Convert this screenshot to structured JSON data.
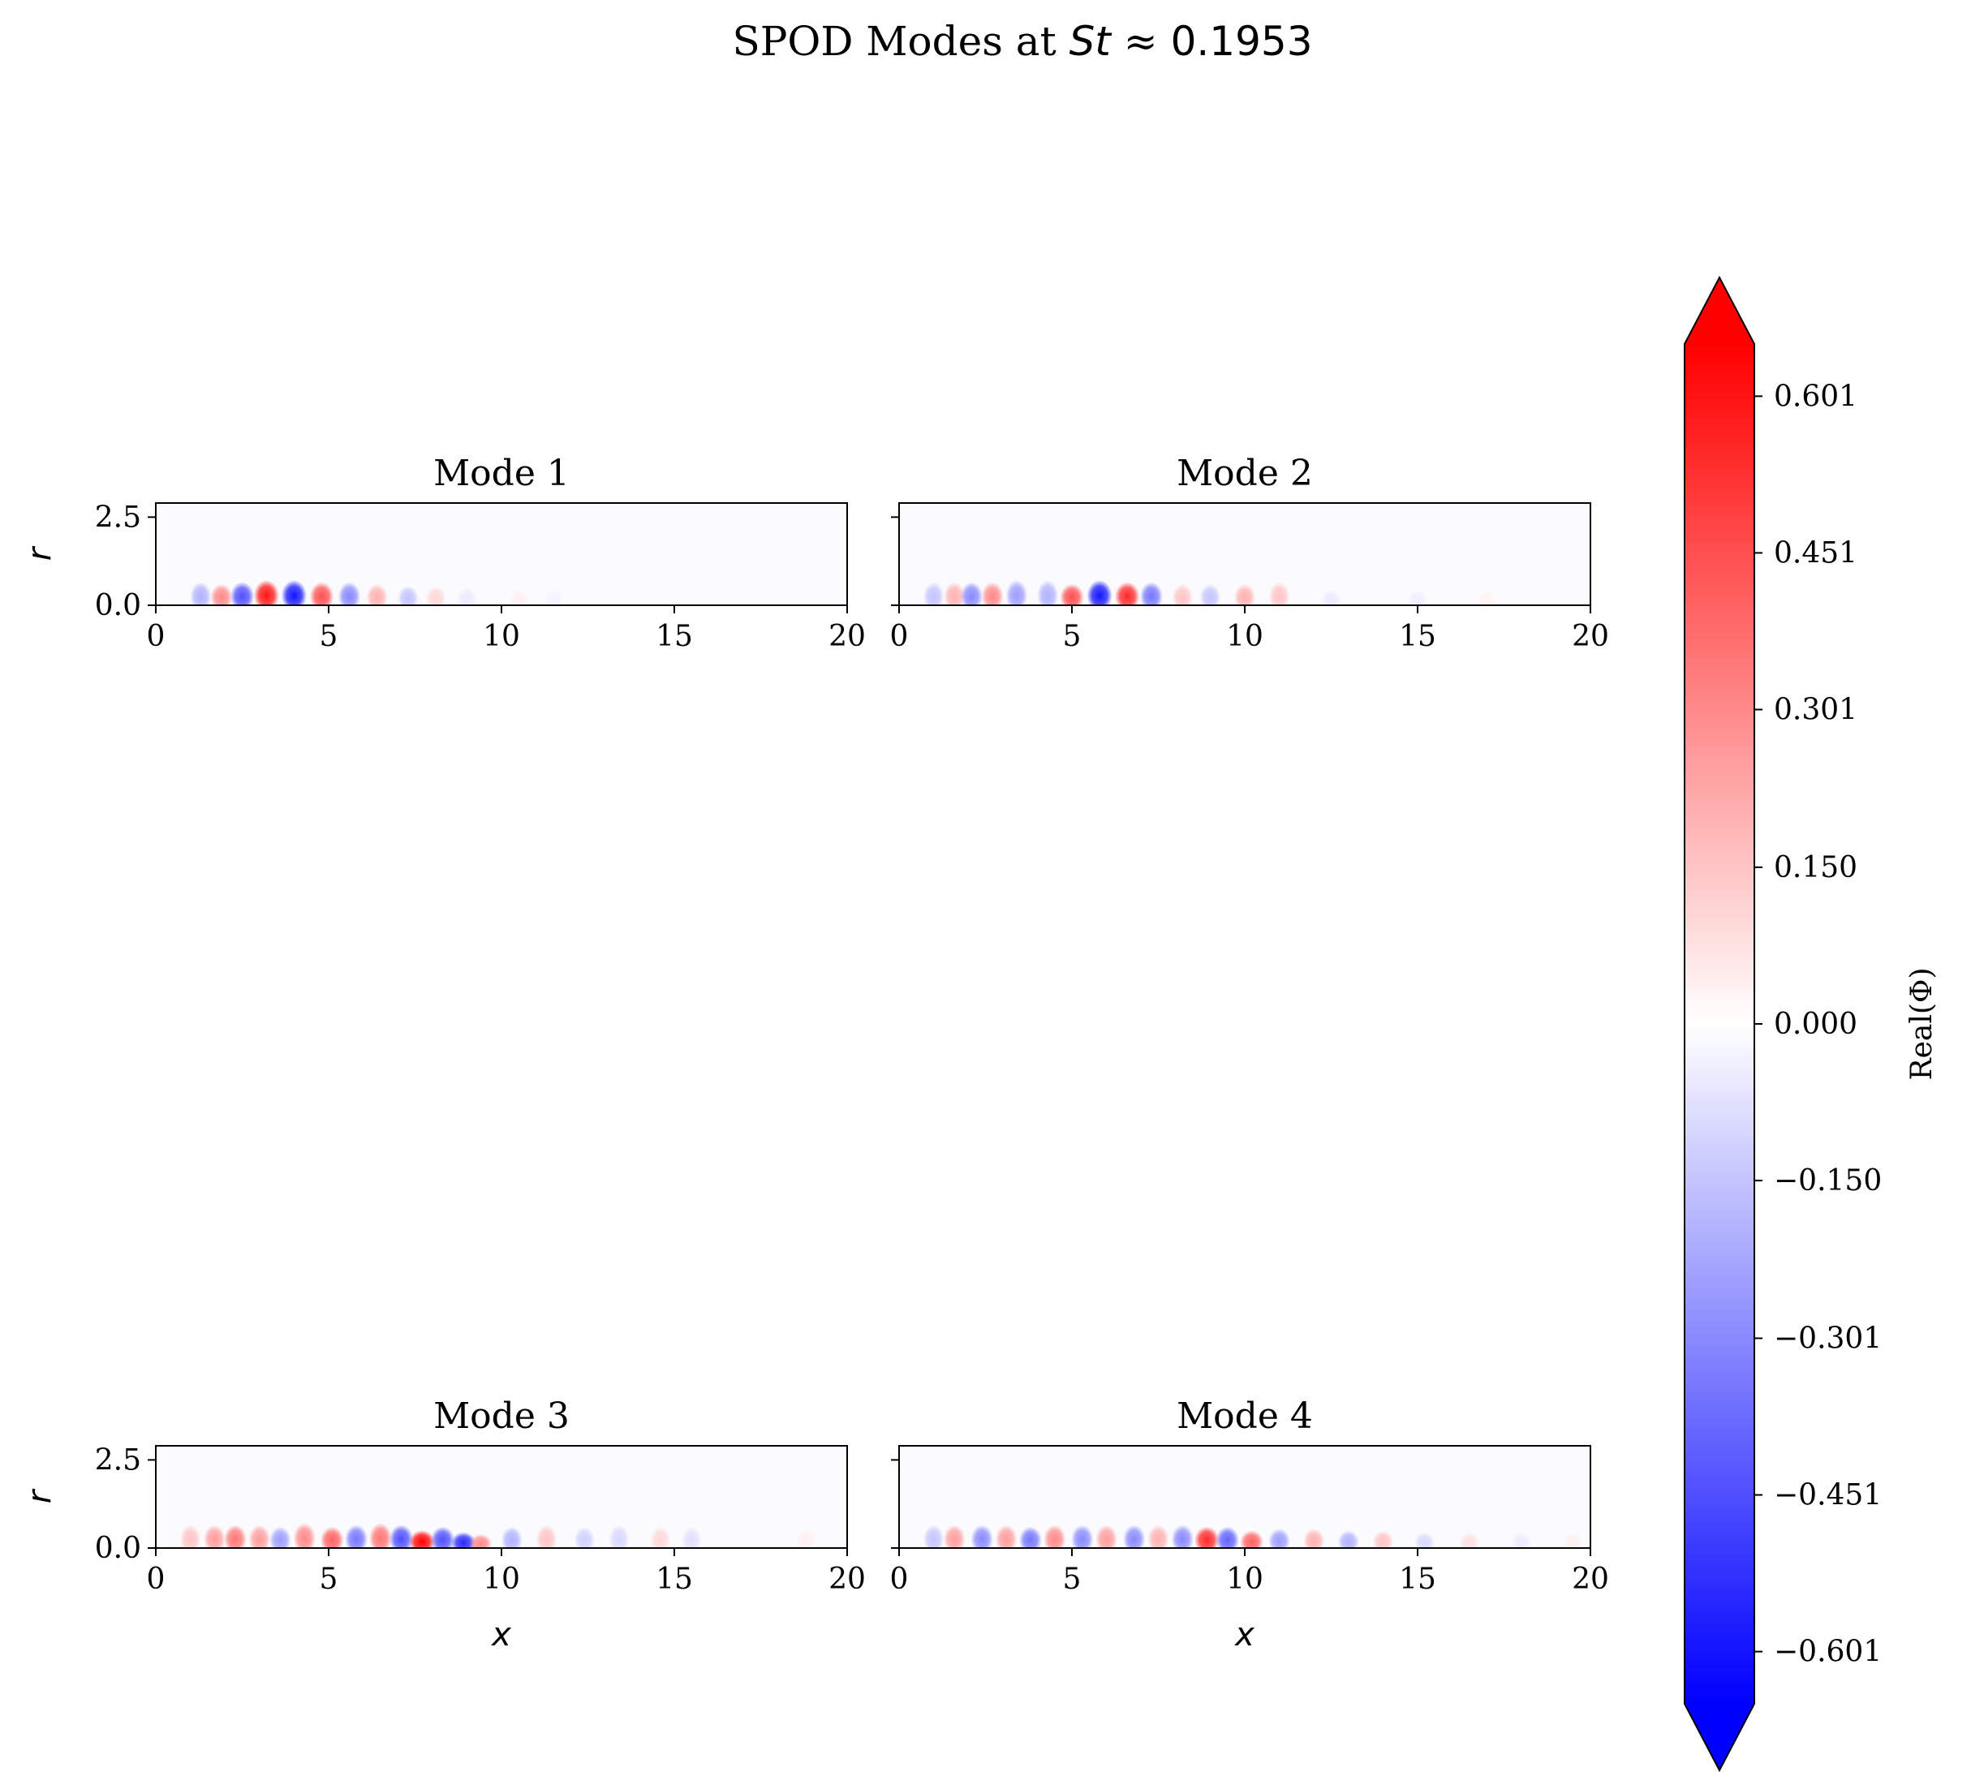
{
  "chart_data": {
    "type": "heatmap",
    "title": {
      "text": "SPOD Modes at ",
      "math_var": "St",
      "math_rel": " ≈ ",
      "math_val": "0.1953"
    },
    "xlabel": "x",
    "ylabel": "r",
    "xlim": [
      0,
      20
    ],
    "ylim": [
      0,
      2.9
    ],
    "x_ticks": [
      "0",
      "5",
      "10",
      "15",
      "20"
    ],
    "y_ticks": [
      "0.0",
      "2.5"
    ],
    "colormap": "bwr",
    "colorbar": {
      "label": "Real(Φ)",
      "ticks": [
        "0.601",
        "0.451",
        "0.301",
        "0.150",
        "0.000",
        "−0.150",
        "−0.301",
        "−0.451",
        "−0.601"
      ],
      "range": [
        -0.651,
        0.651
      ],
      "extend": "both",
      "low_color": "#0000ff",
      "mid_color": "#ffffff",
      "high_color": "#ff0000"
    },
    "panels": [
      {
        "title": "Mode 1",
        "blobs": [
          [
            1.3,
            0.5,
            -0.2
          ],
          [
            1.9,
            0.45,
            0.3
          ],
          [
            2.5,
            0.5,
            -0.45
          ],
          [
            3.2,
            0.55,
            0.6
          ],
          [
            4.0,
            0.55,
            -0.6
          ],
          [
            4.8,
            0.5,
            0.45
          ],
          [
            5.6,
            0.5,
            -0.3
          ],
          [
            6.4,
            0.45,
            0.2
          ],
          [
            7.3,
            0.4,
            -0.15
          ],
          [
            8.1,
            0.4,
            0.1
          ],
          [
            9.0,
            0.35,
            -0.05
          ],
          [
            10.5,
            0.3,
            0.04
          ],
          [
            11.5,
            0.3,
            -0.03
          ]
        ]
      },
      {
        "title": "Mode 2",
        "blobs": [
          [
            1.0,
            0.5,
            -0.15
          ],
          [
            1.6,
            0.5,
            0.2
          ],
          [
            2.1,
            0.5,
            -0.3
          ],
          [
            2.7,
            0.5,
            0.3
          ],
          [
            3.4,
            0.55,
            -0.25
          ],
          [
            4.3,
            0.55,
            -0.2
          ],
          [
            5.0,
            0.45,
            0.45
          ],
          [
            5.8,
            0.55,
            -0.6
          ],
          [
            6.6,
            0.5,
            0.55
          ],
          [
            7.3,
            0.5,
            -0.35
          ],
          [
            8.2,
            0.45,
            0.15
          ],
          [
            9.0,
            0.45,
            -0.15
          ],
          [
            10.0,
            0.45,
            0.2
          ],
          [
            11.0,
            0.5,
            0.15
          ],
          [
            12.5,
            0.3,
            -0.05
          ],
          [
            15.0,
            0.3,
            -0.04
          ],
          [
            17.0,
            0.3,
            0.03
          ]
        ]
      },
      {
        "title": "Mode 3",
        "blobs": [
          [
            1.0,
            0.5,
            0.15
          ],
          [
            1.7,
            0.5,
            0.25
          ],
          [
            2.3,
            0.5,
            0.35
          ],
          [
            3.0,
            0.5,
            0.25
          ],
          [
            3.6,
            0.45,
            -0.25
          ],
          [
            4.3,
            0.55,
            0.3
          ],
          [
            5.1,
            0.45,
            0.4
          ],
          [
            5.8,
            0.5,
            -0.35
          ],
          [
            6.5,
            0.55,
            0.35
          ],
          [
            7.1,
            0.5,
            -0.45
          ],
          [
            7.7,
            0.35,
            0.65
          ],
          [
            8.3,
            0.45,
            -0.45
          ],
          [
            8.9,
            0.3,
            -0.55
          ],
          [
            9.4,
            0.25,
            0.3
          ],
          [
            10.3,
            0.45,
            -0.2
          ],
          [
            11.3,
            0.5,
            0.15
          ],
          [
            12.4,
            0.45,
            -0.12
          ],
          [
            13.4,
            0.5,
            -0.1
          ],
          [
            14.6,
            0.45,
            0.1
          ],
          [
            15.5,
            0.45,
            -0.08
          ],
          [
            18.8,
            0.4,
            0.04
          ]
        ]
      },
      {
        "title": "Mode 4",
        "blobs": [
          [
            1.0,
            0.5,
            -0.15
          ],
          [
            1.6,
            0.5,
            0.25
          ],
          [
            2.4,
            0.5,
            -0.3
          ],
          [
            3.1,
            0.5,
            0.25
          ],
          [
            3.8,
            0.45,
            -0.35
          ],
          [
            4.5,
            0.5,
            0.3
          ],
          [
            5.3,
            0.5,
            -0.3
          ],
          [
            6.0,
            0.5,
            0.25
          ],
          [
            6.8,
            0.5,
            -0.3
          ],
          [
            7.5,
            0.5,
            0.2
          ],
          [
            8.2,
            0.5,
            -0.3
          ],
          [
            8.9,
            0.45,
            0.55
          ],
          [
            9.5,
            0.45,
            -0.4
          ],
          [
            10.2,
            0.35,
            0.4
          ],
          [
            11.0,
            0.4,
            -0.25
          ],
          [
            12.0,
            0.4,
            0.2
          ],
          [
            13.0,
            0.35,
            -0.2
          ],
          [
            14.0,
            0.35,
            0.15
          ],
          [
            15.2,
            0.3,
            -0.1
          ],
          [
            16.5,
            0.3,
            0.08
          ],
          [
            18.0,
            0.3,
            -0.05
          ],
          [
            19.5,
            0.3,
            0.04
          ]
        ]
      }
    ]
  }
}
